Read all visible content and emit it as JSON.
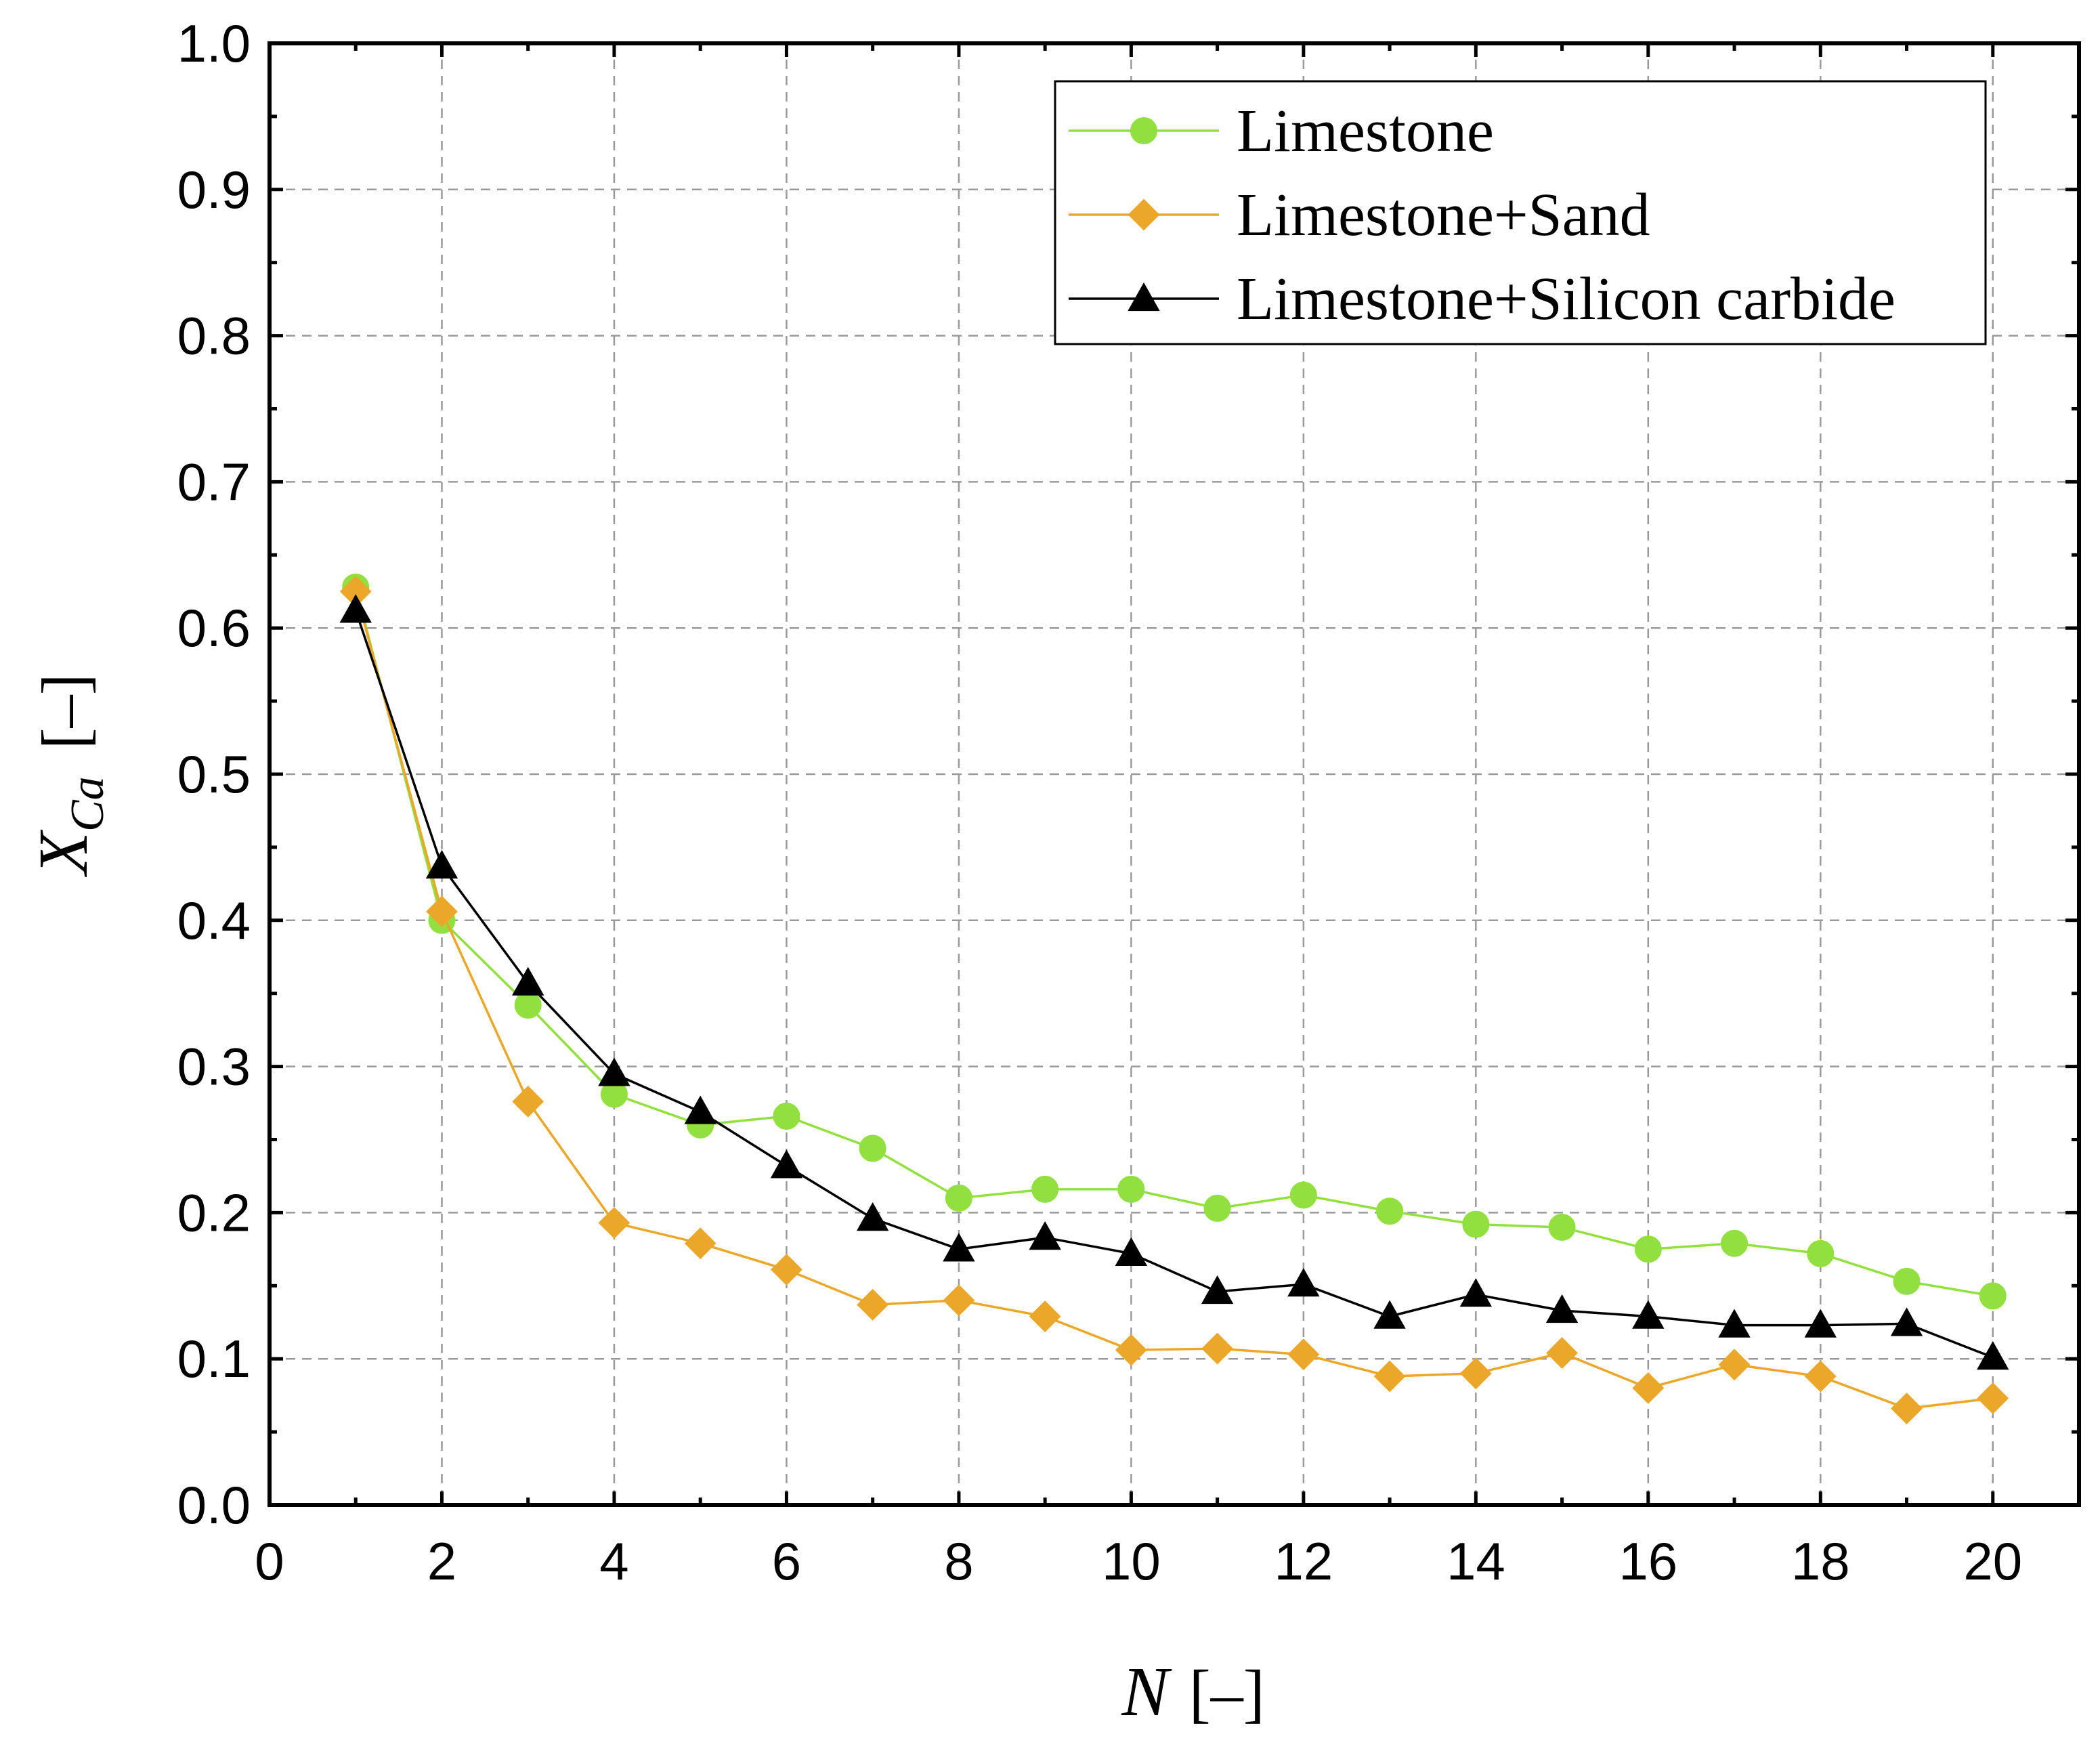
{
  "chart_data": {
    "type": "line",
    "title": "",
    "xlabel_symbol": "N",
    "xlabel_unit": "[–]",
    "ylabel_symbol": "X",
    "ylabel_subscript": "Ca",
    "ylabel_unit": "[–]",
    "xlim": [
      0,
      21
    ],
    "ylim": [
      0.0,
      1.0
    ],
    "x_ticks": [
      "0",
      "2",
      "4",
      "6",
      "8",
      "10",
      "12",
      "14",
      "16",
      "18",
      "20"
    ],
    "y_ticks": [
      "0.0",
      "0.1",
      "0.2",
      "0.3",
      "0.4",
      "0.5",
      "0.6",
      "0.7",
      "0.8",
      "0.9",
      "1.0"
    ],
    "grid": true,
    "legend_position": "top-right",
    "x": [
      1,
      2,
      3,
      4,
      5,
      6,
      7,
      8,
      9,
      10,
      11,
      12,
      13,
      14,
      15,
      16,
      17,
      18,
      19,
      20
    ],
    "series": [
      {
        "name": "Limestone",
        "color": "#92e040",
        "marker": "circle",
        "values": [
          0.628,
          0.4,
          0.342,
          0.281,
          0.26,
          0.266,
          0.244,
          0.21,
          0.216,
          0.216,
          0.203,
          0.212,
          0.201,
          0.192,
          0.19,
          0.175,
          0.179,
          0.172,
          0.153,
          0.143
        ]
      },
      {
        "name": "Limestone+Sand",
        "color": "#eaa72a",
        "marker": "diamond",
        "values": [
          0.625,
          0.406,
          0.276,
          0.193,
          0.179,
          0.161,
          0.137,
          0.14,
          0.129,
          0.106,
          0.107,
          0.103,
          0.088,
          0.09,
          0.104,
          0.08,
          0.096,
          0.088,
          0.066,
          0.073
        ]
      },
      {
        "name": "Limestone+Silicon carbide",
        "color": "#000000",
        "marker": "triangle",
        "values": [
          0.612,
          0.437,
          0.357,
          0.295,
          0.269,
          0.232,
          0.196,
          0.175,
          0.183,
          0.172,
          0.146,
          0.151,
          0.129,
          0.144,
          0.133,
          0.129,
          0.123,
          0.123,
          0.124,
          0.101
        ]
      }
    ]
  }
}
